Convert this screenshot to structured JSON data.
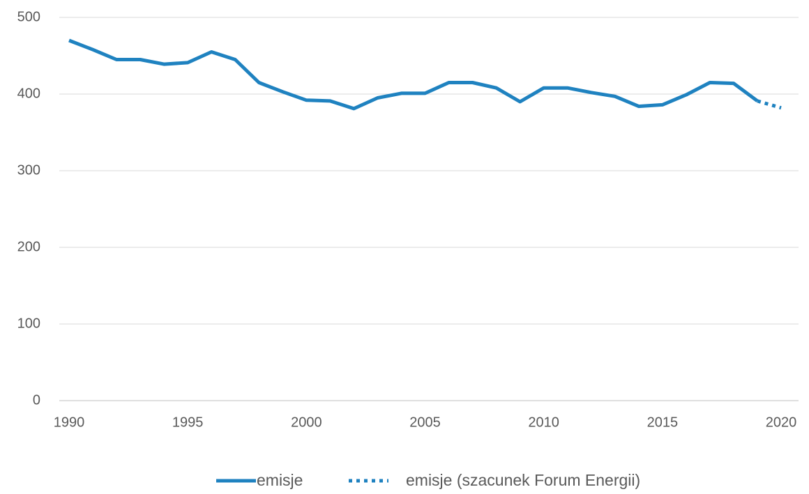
{
  "chart_data": {
    "type": "line",
    "x": [
      1990,
      1991,
      1992,
      1993,
      1994,
      1995,
      1996,
      1997,
      1998,
      1999,
      2000,
      2001,
      2002,
      2003,
      2004,
      2005,
      2006,
      2007,
      2008,
      2009,
      2010,
      2011,
      2012,
      2013,
      2014,
      2015,
      2016,
      2017,
      2018,
      2019,
      2020
    ],
    "series": [
      {
        "name": "emisje",
        "color": "#1f82c0",
        "dash": false,
        "values": [
          470,
          458,
          445,
          445,
          439,
          441,
          455,
          445,
          415,
          403,
          392,
          391,
          381,
          395,
          401,
          401,
          415,
          415,
          408,
          390,
          408,
          408,
          402,
          397,
          384,
          386,
          399,
          415,
          414,
          391,
          null
        ]
      },
      {
        "name": "emisje (szacunek Forum Energii)",
        "color": "#1f82c0",
        "dash": true,
        "values": [
          null,
          null,
          null,
          null,
          null,
          null,
          null,
          null,
          null,
          null,
          null,
          null,
          null,
          null,
          null,
          null,
          null,
          null,
          null,
          null,
          null,
          null,
          null,
          null,
          null,
          null,
          null,
          null,
          null,
          391,
          382
        ]
      }
    ],
    "xlim": [
      1990,
      2020
    ],
    "xticks": [
      1990,
      1995,
      2000,
      2005,
      2010,
      2015,
      2020
    ],
    "ylim": [
      0,
      500
    ],
    "yticks": [
      0,
      100,
      200,
      300,
      400,
      500
    ],
    "grid": true,
    "legend": "bottom"
  }
}
